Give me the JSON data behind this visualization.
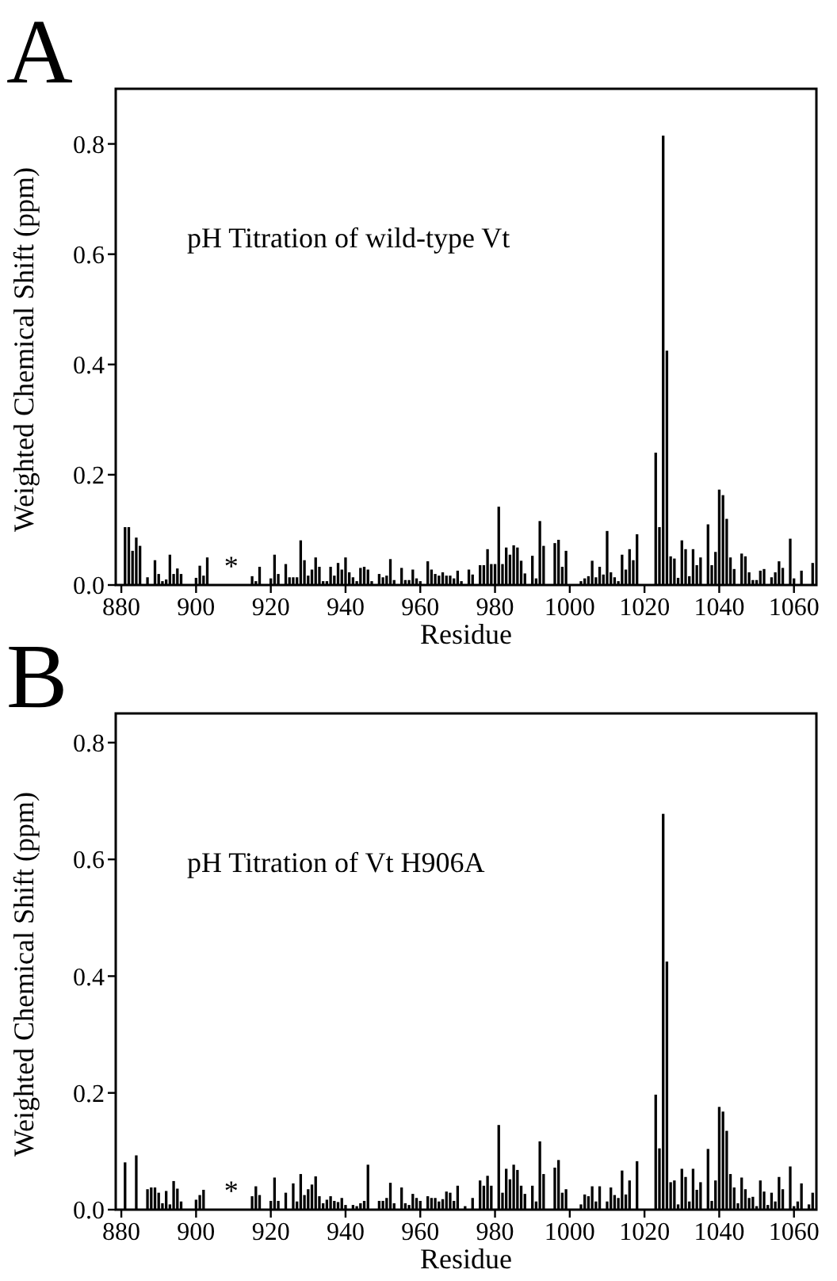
{
  "chart_data": [
    {
      "type": "bar",
      "title": "A",
      "xlabel": "Residue",
      "ylabel": "Weighted Chemical Shift (ppm)",
      "color": "#000000",
      "x": [
        881,
        882,
        883,
        884,
        885,
        887,
        889,
        890,
        891,
        892,
        893,
        894,
        895,
        896,
        900,
        901,
        902,
        903,
        915,
        916,
        917,
        920,
        921,
        922,
        924,
        925,
        926,
        927,
        928,
        929,
        930,
        931,
        932,
        933,
        934,
        935,
        936,
        937,
        938,
        939,
        940,
        941,
        942,
        943,
        944,
        945,
        946,
        947,
        949,
        950,
        951,
        952,
        953,
        955,
        956,
        957,
        958,
        959,
        960,
        962,
        963,
        964,
        965,
        966,
        967,
        968,
        969,
        970,
        971,
        973,
        974,
        976,
        977,
        978,
        979,
        980,
        981,
        982,
        983,
        984,
        985,
        986,
        987,
        988,
        990,
        991,
        992,
        993,
        996,
        997,
        998,
        999,
        1003,
        1004,
        1005,
        1006,
        1007,
        1008,
        1009,
        1010,
        1011,
        1012,
        1013,
        1014,
        1015,
        1016,
        1017,
        1018,
        1023,
        1024,
        1025,
        1026,
        1027,
        1028,
        1029,
        1030,
        1031,
        1032,
        1033,
        1034,
        1035,
        1037,
        1038,
        1039,
        1040,
        1041,
        1042,
        1043,
        1044,
        1046,
        1047,
        1048,
        1049,
        1050,
        1051,
        1052,
        1054,
        1055,
        1056,
        1057,
        1059,
        1060,
        1062,
        1065
      ],
      "values": [
        0.105,
        0.105,
        0.062,
        0.086,
        0.071,
        0.014,
        0.045,
        0.02,
        0.007,
        0.01,
        0.055,
        0.02,
        0.03,
        0.02,
        0.013,
        0.035,
        0.017,
        0.05,
        0.016,
        0.007,
        0.033,
        0.012,
        0.055,
        0.02,
        0.038,
        0.014,
        0.014,
        0.014,
        0.081,
        0.045,
        0.017,
        0.028,
        0.05,
        0.033,
        0.007,
        0.007,
        0.033,
        0.017,
        0.04,
        0.028,
        0.05,
        0.023,
        0.014,
        0.007,
        0.031,
        0.033,
        0.028,
        0.007,
        0.02,
        0.014,
        0.017,
        0.047,
        0.009,
        0.031,
        0.009,
        0.009,
        0.028,
        0.012,
        0.007,
        0.043,
        0.028,
        0.02,
        0.017,
        0.023,
        0.017,
        0.017,
        0.012,
        0.026,
        0.007,
        0.028,
        0.019,
        0.036,
        0.036,
        0.065,
        0.038,
        0.038,
        0.142,
        0.038,
        0.068,
        0.055,
        0.072,
        0.068,
        0.044,
        0.021,
        0.053,
        0.012,
        0.116,
        0.071,
        0.076,
        0.082,
        0.033,
        0.062,
        0.007,
        0.012,
        0.016,
        0.044,
        0.014,
        0.033,
        0.019,
        0.098,
        0.023,
        0.014,
        0.007,
        0.055,
        0.028,
        0.065,
        0.045,
        0.092,
        0.24,
        0.105,
        0.815,
        0.425,
        0.052,
        0.048,
        0.013,
        0.081,
        0.065,
        0.016,
        0.065,
        0.036,
        0.05,
        0.11,
        0.036,
        0.06,
        0.173,
        0.163,
        0.12,
        0.05,
        0.029,
        0.057,
        0.052,
        0.023,
        0.009,
        0.009,
        0.026,
        0.029,
        0.014,
        0.023,
        0.043,
        0.031,
        0.084,
        0.012,
        0.026,
        0.04
      ],
      "xlim": [
        878.5,
        1066
      ],
      "ylim": [
        0,
        0.9
      ],
      "xticks": [
        880,
        900,
        920,
        940,
        960,
        980,
        1000,
        1020,
        1040,
        1060
      ],
      "yticks": [
        {
          "value": 0,
          "label": "0.0"
        },
        0.2,
        0.4,
        0.6,
        0.8
      ],
      "grid": false,
      "annotations": [
        "pH Titration of wild-type Vt",
        "*"
      ]
    },
    {
      "type": "bar",
      "title": "B",
      "xlabel": "Residue",
      "ylabel": "Weighted Chemical Shift (ppm)",
      "color": "#000000",
      "x": [
        881,
        884,
        887,
        888,
        889,
        890,
        891,
        892,
        893,
        894,
        895,
        896,
        900,
        901,
        902,
        915,
        916,
        917,
        920,
        921,
        922,
        924,
        926,
        927,
        928,
        929,
        930,
        931,
        932,
        933,
        934,
        935,
        936,
        937,
        938,
        939,
        940,
        942,
        943,
        944,
        945,
        946,
        949,
        950,
        951,
        952,
        953,
        955,
        956,
        957,
        958,
        959,
        960,
        962,
        963,
        964,
        965,
        966,
        967,
        968,
        969,
        970,
        972,
        974,
        976,
        977,
        978,
        979,
        981,
        982,
        983,
        984,
        985,
        986,
        987,
        988,
        990,
        991,
        992,
        993,
        996,
        997,
        998,
        999,
        1003,
        1004,
        1005,
        1006,
        1007,
        1008,
        1010,
        1011,
        1012,
        1013,
        1014,
        1015,
        1016,
        1018,
        1023,
        1024,
        1025,
        1026,
        1027,
        1028,
        1029,
        1030,
        1031,
        1032,
        1033,
        1034,
        1035,
        1037,
        1038,
        1039,
        1040,
        1041,
        1042,
        1043,
        1044,
        1045,
        1046,
        1047,
        1048,
        1049,
        1050,
        1051,
        1052,
        1053,
        1054,
        1055,
        1056,
        1057,
        1059,
        1060,
        1061,
        1062,
        1064,
        1065
      ],
      "values": [
        0.081,
        0.093,
        0.035,
        0.038,
        0.038,
        0.029,
        0.011,
        0.032,
        0.009,
        0.049,
        0.036,
        0.014,
        0.017,
        0.025,
        0.034,
        0.023,
        0.04,
        0.025,
        0.015,
        0.055,
        0.015,
        0.029,
        0.045,
        0.014,
        0.061,
        0.025,
        0.035,
        0.043,
        0.057,
        0.023,
        0.011,
        0.017,
        0.023,
        0.015,
        0.013,
        0.02,
        0.008,
        0.008,
        0.006,
        0.011,
        0.015,
        0.077,
        0.015,
        0.015,
        0.02,
        0.046,
        0.011,
        0.038,
        0.011,
        0.008,
        0.027,
        0.02,
        0.015,
        0.023,
        0.02,
        0.02,
        0.014,
        0.018,
        0.031,
        0.029,
        0.015,
        0.041,
        0.006,
        0.02,
        0.05,
        0.041,
        0.058,
        0.041,
        0.145,
        0.029,
        0.07,
        0.052,
        0.077,
        0.068,
        0.041,
        0.027,
        0.041,
        0.014,
        0.117,
        0.061,
        0.072,
        0.085,
        0.029,
        0.035,
        0.009,
        0.026,
        0.023,
        0.04,
        0.014,
        0.04,
        0.014,
        0.038,
        0.025,
        0.02,
        0.067,
        0.026,
        0.05,
        0.083,
        0.197,
        0.105,
        0.678,
        0.425,
        0.047,
        0.05,
        0.009,
        0.07,
        0.056,
        0.014,
        0.07,
        0.034,
        0.047,
        0.104,
        0.015,
        0.05,
        0.176,
        0.168,
        0.135,
        0.061,
        0.038,
        0.011,
        0.055,
        0.035,
        0.02,
        0.022,
        0.006,
        0.05,
        0.031,
        0.008,
        0.029,
        0.014,
        0.056,
        0.035,
        0.074,
        0.006,
        0.014,
        0.045,
        0.009,
        0.029
      ],
      "xlim": [
        878.5,
        1066
      ],
      "ylim": [
        0,
        0.85
      ],
      "xticks": [
        880,
        900,
        920,
        940,
        960,
        980,
        1000,
        1020,
        1040,
        1060
      ],
      "yticks": [
        {
          "value": 0,
          "label": "0.0"
        },
        0.2,
        0.4,
        0.6,
        0.8
      ],
      "grid": false,
      "annotations": [
        "pH Titration of Vt H906A",
        "*"
      ]
    }
  ]
}
